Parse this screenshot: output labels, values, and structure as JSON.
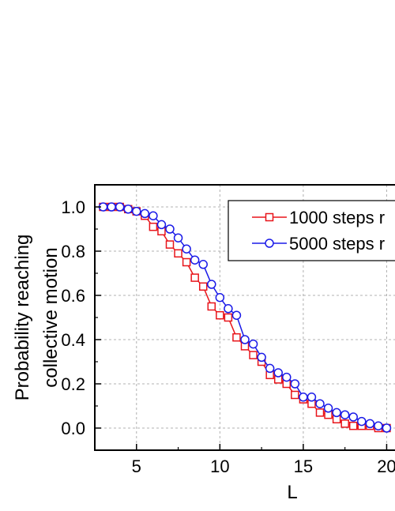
{
  "chart_data": {
    "type": "line",
    "title": "",
    "xlabel": "L",
    "ylabel_line1": "Probability reaching",
    "ylabel_line2": "collective motion",
    "xlim": [
      2.5,
      20.5
    ],
    "ylim": [
      -0.1,
      1.1
    ],
    "xticks": [
      5,
      10,
      15,
      20
    ],
    "xtick_labels": [
      "5",
      "10",
      "15",
      "20"
    ],
    "yticks": [
      0.0,
      0.2,
      0.4,
      0.6,
      0.8,
      1.0
    ],
    "ytick_labels": [
      "0.0",
      "0.2",
      "0.4",
      "0.6",
      "0.8",
      "1.0"
    ],
    "grid": true,
    "legend_position": "top-right",
    "series": [
      {
        "name": "1000 steps r",
        "color": "#e8141a",
        "marker": "square",
        "x": [
          3.0,
          3.5,
          4.0,
          4.5,
          5.0,
          5.5,
          6.0,
          6.5,
          7.0,
          7.5,
          8.0,
          8.5,
          9.0,
          9.5,
          10.0,
          10.5,
          11.0,
          11.5,
          12.0,
          12.5,
          13.0,
          13.5,
          14.0,
          14.5,
          15.0,
          15.5,
          16.0,
          16.5,
          17.0,
          17.5,
          18.0,
          18.5,
          19.0,
          19.5,
          20.0
        ],
        "y": [
          1.0,
          1.0,
          1.0,
          0.99,
          0.98,
          0.96,
          0.91,
          0.89,
          0.83,
          0.79,
          0.75,
          0.68,
          0.64,
          0.55,
          0.51,
          0.5,
          0.41,
          0.37,
          0.33,
          0.3,
          0.24,
          0.22,
          0.2,
          0.15,
          0.13,
          0.11,
          0.07,
          0.06,
          0.04,
          0.02,
          0.01,
          0.01,
          0.01,
          0.0,
          0.0
        ]
      },
      {
        "name": "5000 steps r",
        "color": "#1a1ae8",
        "marker": "circle",
        "x": [
          3.0,
          3.5,
          4.0,
          4.5,
          5.0,
          5.5,
          6.0,
          6.5,
          7.0,
          7.5,
          8.0,
          8.5,
          9.0,
          9.5,
          10.0,
          10.5,
          11.0,
          11.5,
          12.0,
          12.5,
          13.0,
          13.5,
          14.0,
          14.5,
          15.0,
          15.5,
          16.0,
          16.5,
          17.0,
          17.5,
          18.0,
          18.5,
          19.0,
          19.5,
          20.0
        ],
        "y": [
          1.0,
          1.0,
          1.0,
          0.99,
          0.98,
          0.97,
          0.96,
          0.92,
          0.9,
          0.86,
          0.81,
          0.76,
          0.74,
          0.65,
          0.59,
          0.54,
          0.51,
          0.4,
          0.38,
          0.32,
          0.27,
          0.25,
          0.23,
          0.2,
          0.14,
          0.14,
          0.11,
          0.09,
          0.07,
          0.06,
          0.05,
          0.03,
          0.02,
          0.01,
          0.0
        ]
      }
    ]
  }
}
